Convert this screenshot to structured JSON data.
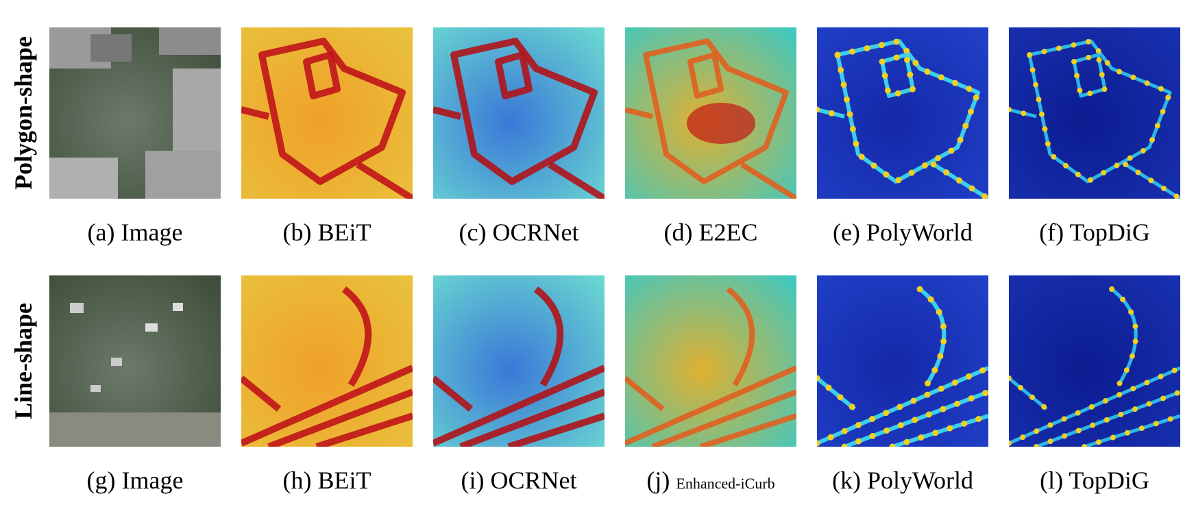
{
  "rows": [
    {
      "label": "Polygon-shape",
      "panels": [
        {
          "letter": "(a)",
          "name": "Image"
        },
        {
          "letter": "(b)",
          "name": "BEiT"
        },
        {
          "letter": "(c)",
          "name": "OCRNet"
        },
        {
          "letter": "(d)",
          "name": "E2EC"
        },
        {
          "letter": "(e)",
          "name": "PolyWorld"
        },
        {
          "letter": "(f)",
          "name": "TopDiG"
        }
      ]
    },
    {
      "label": "Line-shape",
      "panels": [
        {
          "letter": "(g)",
          "name": "Image"
        },
        {
          "letter": "(h)",
          "name": "BEiT"
        },
        {
          "letter": "(i)",
          "name": "OCRNet"
        },
        {
          "letter": "(j)",
          "name": "Enhanced-iCurb"
        },
        {
          "letter": "(k)",
          "name": "PolyWorld"
        },
        {
          "letter": "(l)",
          "name": "TopDiG"
        }
      ]
    }
  ]
}
